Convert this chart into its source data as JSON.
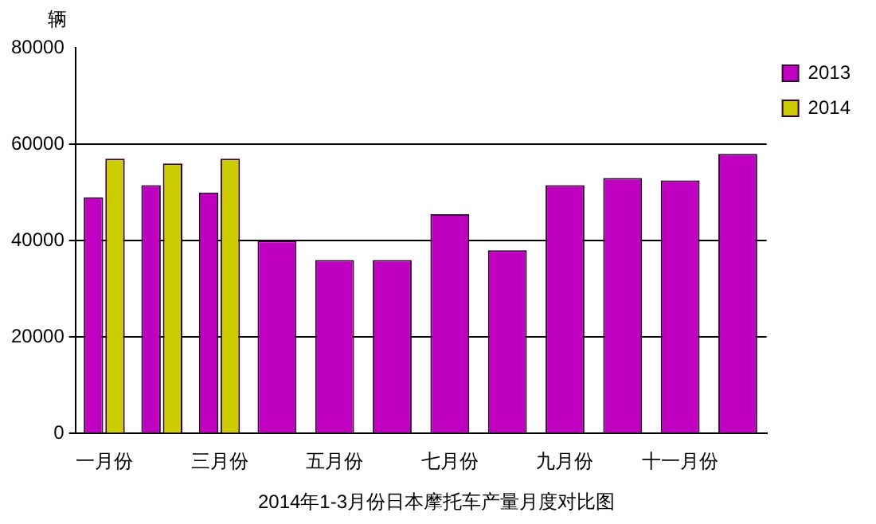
{
  "chart_data": {
    "type": "bar",
    "title": "2014年1-3月份日本摩托车产量月度对比图",
    "ylabel": "辆",
    "categories": [
      "一月份",
      null,
      "三月份",
      null,
      "五月份",
      null,
      "七月份",
      null,
      "九月份",
      null,
      "十一月份",
      null
    ],
    "series": [
      {
        "name": "2013",
        "color": "#c000c0",
        "values": [
          49000,
          51500,
          50000,
          40000,
          36000,
          36000,
          45500,
          38000,
          51500,
          53000,
          52500,
          58000
        ]
      },
      {
        "name": "2014",
        "color": "#cccc00",
        "values": [
          57000,
          56000,
          57000,
          null,
          null,
          null,
          null,
          null,
          null,
          null,
          null,
          null
        ]
      }
    ],
    "ylim": [
      0,
      80000
    ],
    "yticks": [
      0,
      20000,
      40000,
      60000,
      80000
    ],
    "grid": "y",
    "legend": "top right"
  }
}
